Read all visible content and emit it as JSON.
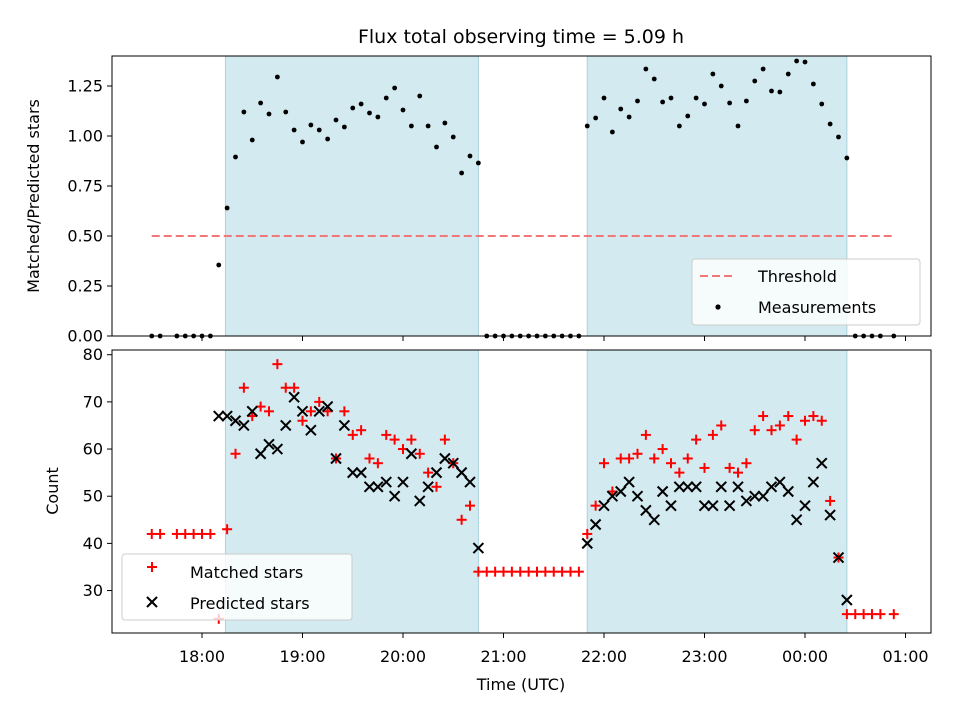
{
  "chart_data": [
    {
      "type": "scatter",
      "title": "Flux total observing time = 5.09 h",
      "ylabel": "Matched/Predicted stars",
      "xlabel": "",
      "ylim": [
        0,
        1.4
      ],
      "yticks": [
        "0.00",
        "0.25",
        "0.50",
        "0.75",
        "1.00",
        "1.25"
      ],
      "grid": false,
      "legend_position": "lower-right",
      "shaded_intervals": [
        {
          "start": "18:14",
          "end": "20:45"
        },
        {
          "start": "21:50",
          "end": "00:25"
        }
      ],
      "threshold": {
        "name": "Threshold",
        "value": 0.5,
        "x_start": "17:30",
        "x_end": "00:53",
        "color": "#f07878",
        "style": "dashed"
      },
      "series": [
        {
          "name": "Measurements",
          "marker": "dot",
          "color": "#000000",
          "points": [
            [
              "17:30",
              0.0
            ],
            [
              "17:35",
              0.0
            ],
            [
              "17:45",
              0.0
            ],
            [
              "17:50",
              0.0
            ],
            [
              "17:55",
              0.0
            ],
            [
              "18:00",
              0.0
            ],
            [
              "18:05",
              0.0
            ],
            [
              "18:10",
              0.355
            ],
            [
              "18:15",
              0.64
            ],
            [
              "18:20",
              0.895
            ],
            [
              "18:25",
              1.12
            ],
            [
              "18:30",
              0.98
            ],
            [
              "18:35",
              1.165
            ],
            [
              "18:40",
              1.11
            ],
            [
              "18:45",
              1.295
            ],
            [
              "18:50",
              1.12
            ],
            [
              "18:55",
              1.03
            ],
            [
              "19:00",
              0.97
            ],
            [
              "19:05",
              1.055
            ],
            [
              "19:10",
              1.03
            ],
            [
              "19:15",
              0.985
            ],
            [
              "19:20",
              1.08
            ],
            [
              "19:25",
              1.045
            ],
            [
              "19:30",
              1.14
            ],
            [
              "19:35",
              1.16
            ],
            [
              "19:40",
              1.115
            ],
            [
              "19:45",
              1.095
            ],
            [
              "19:50",
              1.19
            ],
            [
              "19:55",
              1.24
            ],
            [
              "20:00",
              1.13
            ],
            [
              "20:05",
              1.05
            ],
            [
              "20:10",
              1.2
            ],
            [
              "20:15",
              1.05
            ],
            [
              "20:20",
              0.945
            ],
            [
              "20:25",
              1.065
            ],
            [
              "20:30",
              0.995
            ],
            [
              "20:35",
              0.815
            ],
            [
              "20:40",
              0.9
            ],
            [
              "20:45",
              0.865
            ],
            [
              "20:50",
              0.0
            ],
            [
              "20:55",
              0.0
            ],
            [
              "21:00",
              0.0
            ],
            [
              "21:05",
              0.0
            ],
            [
              "21:10",
              0.0
            ],
            [
              "21:15",
              0.0
            ],
            [
              "21:20",
              0.0
            ],
            [
              "21:25",
              0.0
            ],
            [
              "21:30",
              0.0
            ],
            [
              "21:35",
              0.0
            ],
            [
              "21:40",
              0.0
            ],
            [
              "21:45",
              0.0
            ],
            [
              "21:50",
              1.05
            ],
            [
              "21:55",
              1.09
            ],
            [
              "22:00",
              1.19
            ],
            [
              "22:05",
              1.02
            ],
            [
              "22:10",
              1.135
            ],
            [
              "22:15",
              1.095
            ],
            [
              "22:20",
              1.175
            ],
            [
              "22:25",
              1.335
            ],
            [
              "22:30",
              1.285
            ],
            [
              "22:35",
              1.17
            ],
            [
              "22:40",
              1.19
            ],
            [
              "22:45",
              1.05
            ],
            [
              "22:50",
              1.1
            ],
            [
              "22:55",
              1.19
            ],
            [
              "23:00",
              1.16
            ],
            [
              "23:05",
              1.31
            ],
            [
              "23:10",
              1.25
            ],
            [
              "23:15",
              1.165
            ],
            [
              "23:20",
              1.05
            ],
            [
              "23:25",
              1.175
            ],
            [
              "23:30",
              1.275
            ],
            [
              "23:35",
              1.335
            ],
            [
              "23:40",
              1.225
            ],
            [
              "23:45",
              1.22
            ],
            [
              "23:50",
              1.31
            ],
            [
              "23:55",
              1.375
            ],
            [
              "00:00",
              1.37
            ],
            [
              "00:05",
              1.26
            ],
            [
              "00:10",
              1.16
            ],
            [
              "00:15",
              1.06
            ],
            [
              "00:20",
              0.995
            ],
            [
              "00:25",
              0.89
            ],
            [
              "00:30",
              0.0
            ],
            [
              "00:35",
              0.0
            ],
            [
              "00:40",
              0.0
            ],
            [
              "00:45",
              0.0
            ],
            [
              "00:53",
              0.0
            ]
          ]
        }
      ]
    },
    {
      "type": "scatter",
      "title": "",
      "xlabel": "Time (UTC)",
      "ylabel": "Count",
      "ylim": [
        21,
        81
      ],
      "yticks": [
        "30",
        "40",
        "50",
        "60",
        "70",
        "80"
      ],
      "xticks": [
        "18:00",
        "19:00",
        "20:00",
        "21:00",
        "22:00",
        "23:00",
        "00:00",
        "01:00"
      ],
      "grid": false,
      "legend_position": "lower-left",
      "shaded_intervals": [
        {
          "start": "18:14",
          "end": "20:45"
        },
        {
          "start": "21:50",
          "end": "00:25"
        }
      ],
      "series": [
        {
          "name": "Matched stars",
          "marker": "plus",
          "color": "#ff0000",
          "points": [
            [
              "17:30",
              42
            ],
            [
              "17:35",
              42
            ],
            [
              "17:45",
              42
            ],
            [
              "17:50",
              42
            ],
            [
              "17:55",
              42
            ],
            [
              "18:00",
              42
            ],
            [
              "18:05",
              42
            ],
            [
              "18:10",
              24
            ],
            [
              "18:15",
              43
            ],
            [
              "18:20",
              59
            ],
            [
              "18:25",
              73
            ],
            [
              "18:30",
              67
            ],
            [
              "18:35",
              69
            ],
            [
              "18:40",
              68
            ],
            [
              "18:45",
              78
            ],
            [
              "18:50",
              73
            ],
            [
              "18:55",
              73
            ],
            [
              "19:00",
              66
            ],
            [
              "19:05",
              68
            ],
            [
              "19:10",
              70
            ],
            [
              "19:15",
              68
            ],
            [
              "19:20",
              58
            ],
            [
              "19:25",
              68
            ],
            [
              "19:30",
              63
            ],
            [
              "19:35",
              64
            ],
            [
              "19:40",
              58
            ],
            [
              "19:45",
              57
            ],
            [
              "19:50",
              63
            ],
            [
              "19:55",
              62
            ],
            [
              "20:00",
              60
            ],
            [
              "20:05",
              62
            ],
            [
              "20:10",
              59
            ],
            [
              "20:15",
              55
            ],
            [
              "20:20",
              52
            ],
            [
              "20:25",
              62
            ],
            [
              "20:30",
              57
            ],
            [
              "20:35",
              45
            ],
            [
              "20:40",
              48
            ],
            [
              "20:45",
              34
            ],
            [
              "20:50",
              34
            ],
            [
              "20:55",
              34
            ],
            [
              "21:00",
              34
            ],
            [
              "21:05",
              34
            ],
            [
              "21:10",
              34
            ],
            [
              "21:15",
              34
            ],
            [
              "21:20",
              34
            ],
            [
              "21:25",
              34
            ],
            [
              "21:30",
              34
            ],
            [
              "21:35",
              34
            ],
            [
              "21:40",
              34
            ],
            [
              "21:45",
              34
            ],
            [
              "21:50",
              42
            ],
            [
              "21:55",
              48
            ],
            [
              "22:00",
              57
            ],
            [
              "22:05",
              51
            ],
            [
              "22:10",
              58
            ],
            [
              "22:15",
              58
            ],
            [
              "22:20",
              59
            ],
            [
              "22:25",
              63
            ],
            [
              "22:30",
              58
            ],
            [
              "22:35",
              60
            ],
            [
              "22:40",
              57
            ],
            [
              "22:45",
              55
            ],
            [
              "22:50",
              58
            ],
            [
              "22:55",
              62
            ],
            [
              "23:00",
              56
            ],
            [
              "23:05",
              63
            ],
            [
              "23:10",
              65
            ],
            [
              "23:15",
              56
            ],
            [
              "23:20",
              55
            ],
            [
              "23:25",
              57
            ],
            [
              "23:30",
              64
            ],
            [
              "23:35",
              67
            ],
            [
              "23:40",
              64
            ],
            [
              "23:45",
              65
            ],
            [
              "23:50",
              67
            ],
            [
              "23:55",
              62
            ],
            [
              "00:00",
              66
            ],
            [
              "00:05",
              67
            ],
            [
              "00:10",
              66
            ],
            [
              "00:15",
              49
            ],
            [
              "00:20",
              37
            ],
            [
              "00:25",
              25
            ],
            [
              "00:30",
              25
            ],
            [
              "00:35",
              25
            ],
            [
              "00:40",
              25
            ],
            [
              "00:45",
              25
            ],
            [
              "00:53",
              25
            ]
          ]
        },
        {
          "name": "Predicted stars",
          "marker": "x",
          "color": "#000000",
          "points": [
            [
              "18:10",
              67
            ],
            [
              "18:15",
              67
            ],
            [
              "18:20",
              66
            ],
            [
              "18:25",
              65
            ],
            [
              "18:30",
              68
            ],
            [
              "18:35",
              59
            ],
            [
              "18:40",
              61
            ],
            [
              "18:45",
              60
            ],
            [
              "18:50",
              65
            ],
            [
              "18:55",
              71
            ],
            [
              "19:00",
              68
            ],
            [
              "19:05",
              64
            ],
            [
              "19:10",
              68
            ],
            [
              "19:15",
              69
            ],
            [
              "19:20",
              58
            ],
            [
              "19:25",
              65
            ],
            [
              "19:30",
              55
            ],
            [
              "19:35",
              55
            ],
            [
              "19:40",
              52
            ],
            [
              "19:45",
              52
            ],
            [
              "19:50",
              53
            ],
            [
              "19:55",
              50
            ],
            [
              "20:00",
              53
            ],
            [
              "20:05",
              59
            ],
            [
              "20:10",
              49
            ],
            [
              "20:15",
              52
            ],
            [
              "20:20",
              55
            ],
            [
              "20:25",
              58
            ],
            [
              "20:30",
              57
            ],
            [
              "20:35",
              55
            ],
            [
              "20:40",
              53
            ],
            [
              "20:45",
              39
            ],
            [
              "21:50",
              40
            ],
            [
              "21:55",
              44
            ],
            [
              "22:00",
              48
            ],
            [
              "22:05",
              50
            ],
            [
              "22:10",
              51
            ],
            [
              "22:15",
              53
            ],
            [
              "22:20",
              50
            ],
            [
              "22:25",
              47
            ],
            [
              "22:30",
              45
            ],
            [
              "22:35",
              51
            ],
            [
              "22:40",
              48
            ],
            [
              "22:45",
              52
            ],
            [
              "22:50",
              52
            ],
            [
              "22:55",
              52
            ],
            [
              "23:00",
              48
            ],
            [
              "23:05",
              48
            ],
            [
              "23:10",
              52
            ],
            [
              "23:15",
              48
            ],
            [
              "23:20",
              52
            ],
            [
              "23:25",
              49
            ],
            [
              "23:30",
              50
            ],
            [
              "23:35",
              50
            ],
            [
              "23:40",
              52
            ],
            [
              "23:45",
              53
            ],
            [
              "23:50",
              51
            ],
            [
              "23:55",
              45
            ],
            [
              "00:00",
              48
            ],
            [
              "00:05",
              53
            ],
            [
              "00:10",
              57
            ],
            [
              "00:15",
              46
            ],
            [
              "00:20",
              37
            ],
            [
              "00:25",
              28
            ]
          ]
        }
      ]
    }
  ],
  "colors": {
    "shade": "#d3eaf0",
    "matched": "#ff0000",
    "predicted": "#000000",
    "threshold": "#f07878"
  }
}
